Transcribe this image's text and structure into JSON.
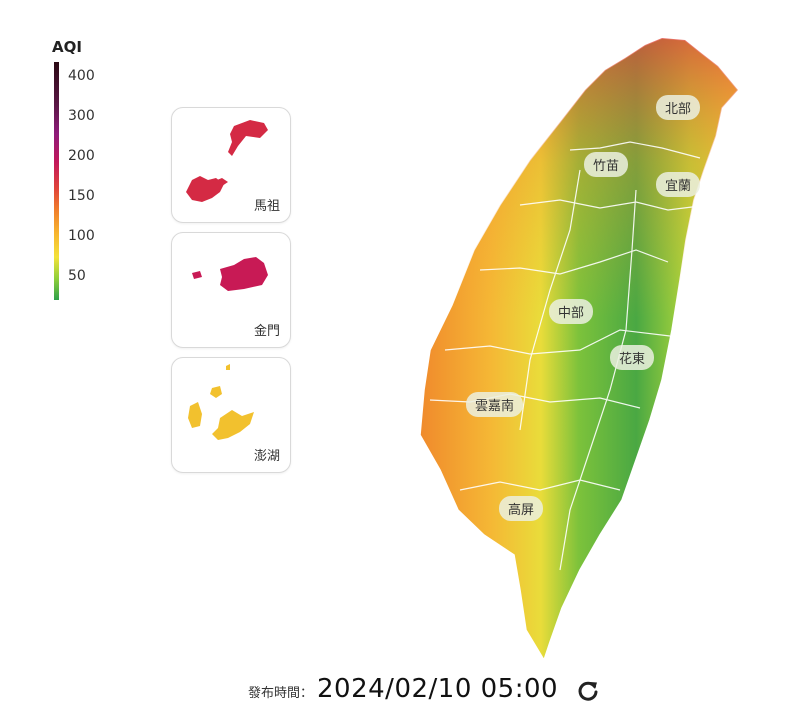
{
  "legend": {
    "title": "AQI",
    "ticks": [
      "400",
      "300",
      "200",
      "150",
      "100",
      "50"
    ]
  },
  "insets": [
    {
      "label": "馬祖",
      "color": "#d42a44"
    },
    {
      "label": "金門",
      "color": "#c81a55"
    },
    {
      "label": "澎湖",
      "color": "#f2c12e"
    }
  ],
  "regions": [
    "北部",
    "竹苗",
    "宜蘭",
    "中部",
    "花東",
    "雲嘉南",
    "高屏"
  ],
  "footer": {
    "published_label": "發布時間：",
    "published_time": "2024/02/10 05:00"
  },
  "icons": {
    "refresh": "refresh-icon"
  },
  "colors": {
    "good": "#3aa24a",
    "moderate": "#f2e03a",
    "sensitive": "#f5a32e",
    "unhealthy": "#e2443a"
  }
}
